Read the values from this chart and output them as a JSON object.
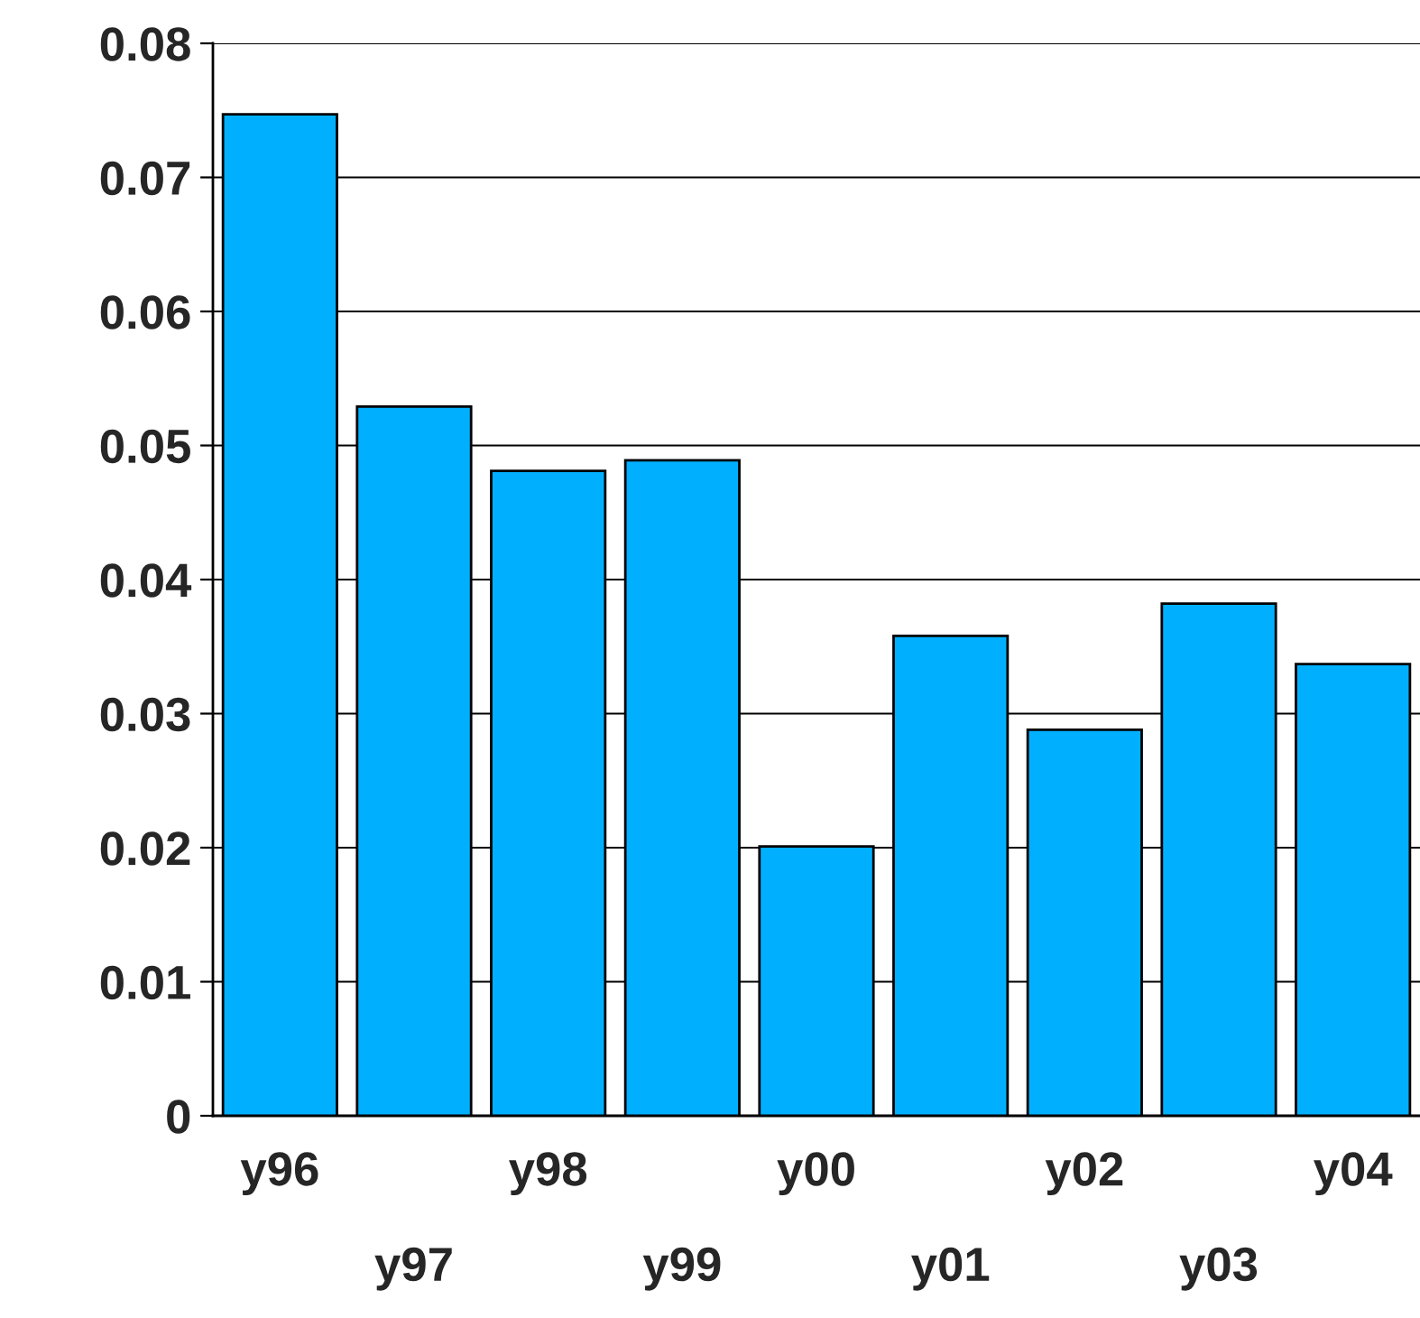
{
  "chart_data": {
    "type": "bar",
    "categories": [
      "y96",
      "y97",
      "y98",
      "y99",
      "y00",
      "y01",
      "y02",
      "y03",
      "y04"
    ],
    "values": [
      0.0747,
      0.0529,
      0.0481,
      0.0489,
      0.0201,
      0.0358,
      0.0288,
      0.0382,
      0.0337
    ],
    "color": "#00b0ff",
    "ylim": [
      0,
      0.08
    ],
    "yticks": [
      {
        "value": 0,
        "label": "0"
      },
      0.01,
      0.02,
      0.03,
      0.04,
      0.05,
      0.06,
      0.07,
      0.08
    ],
    "grid": "y",
    "legend": false
  }
}
